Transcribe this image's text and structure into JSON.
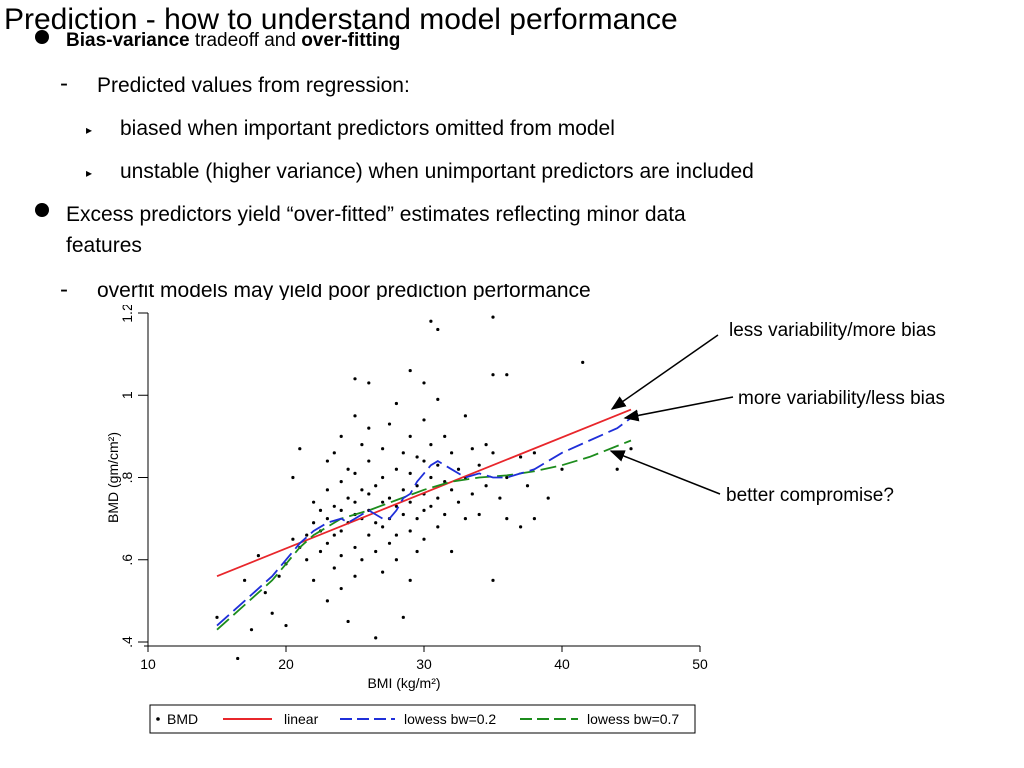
{
  "slide": {
    "title": "Prediction - how to understand model performance",
    "bullet1_bold1": "Bias-variance",
    "bullet1_mid": " tradeoff and ",
    "bullet1_bold2": "over-fitting",
    "sub1": "Predicted values from regression:",
    "subsub1": "biased when important predictors omitted from model",
    "subsub2": "unstable (higher variance) when unimportant predictors are included",
    "bullet2_line1": "Excess predictors yield “over-fitted” estimates reflecting minor data",
    "bullet2_line2": "features",
    "sub2": "overfit models may yield poor prediction performance",
    "triangle": "▸",
    "dash": "-"
  },
  "annotations": {
    "less_var": "less variability/more bias",
    "more_var": "more variability/less bias",
    "compromise": "better compromise?"
  },
  "chart_data": {
    "type": "scatter",
    "xlabel": "BMI (kg/m²)",
    "ylabel": "BMD (gm/cm²)",
    "xlim": [
      10,
      50
    ],
    "ylim": [
      0.4,
      1.2
    ],
    "xticks": [
      10,
      20,
      30,
      40,
      50
    ],
    "yticks": [
      0.4,
      0.6,
      0.8,
      1,
      1.2
    ],
    "xtick_labels": [
      "10",
      "20",
      "30",
      "40",
      "50"
    ],
    "ytick_labels": [
      ".4",
      ".6",
      ".8",
      "1",
      "1.2"
    ],
    "legend": [
      "BMD",
      "linear",
      "lowess bw=0.2",
      "lowess bw=0.7"
    ],
    "colors": {
      "points": "#000000",
      "linear": "#e8262b",
      "lowess02": "#1f2fd9",
      "lowess07": "#1c8c1c"
    },
    "series": [
      {
        "name": "linear",
        "x": [
          15,
          45
        ],
        "y": [
          0.56,
          0.965
        ]
      },
      {
        "name": "lowess bw=0.2",
        "x": [
          15,
          17,
          19,
          20,
          21,
          22,
          23,
          24,
          24.5,
          25,
          25.5,
          26,
          27,
          27.5,
          28,
          28.5,
          29,
          29.5,
          30,
          30.5,
          31,
          31.5,
          32,
          33,
          34,
          35,
          36,
          37,
          38,
          40,
          42,
          44,
          45
        ],
        "y": [
          0.44,
          0.5,
          0.56,
          0.6,
          0.64,
          0.67,
          0.69,
          0.7,
          0.69,
          0.7,
          0.71,
          0.72,
          0.7,
          0.7,
          0.72,
          0.75,
          0.76,
          0.79,
          0.81,
          0.83,
          0.84,
          0.83,
          0.82,
          0.8,
          0.81,
          0.8,
          0.8,
          0.81,
          0.82,
          0.86,
          0.89,
          0.92,
          0.945
        ]
      },
      {
        "name": "lowess bw=0.7",
        "x": [
          15,
          17,
          19,
          20,
          21,
          22,
          24,
          26,
          28,
          30,
          32,
          34,
          36,
          38,
          40,
          42,
          45
        ],
        "y": [
          0.43,
          0.49,
          0.55,
          0.59,
          0.63,
          0.66,
          0.7,
          0.72,
          0.745,
          0.77,
          0.79,
          0.8,
          0.805,
          0.815,
          0.83,
          0.85,
          0.89
        ]
      },
      {
        "name": "BMD",
        "points": [
          [
            15,
            0.46
          ],
          [
            16.5,
            0.36
          ],
          [
            17,
            0.55
          ],
          [
            17.5,
            0.43
          ],
          [
            18,
            0.61
          ],
          [
            18.5,
            0.52
          ],
          [
            19,
            0.47
          ],
          [
            19.5,
            0.56
          ],
          [
            20,
            0.44
          ],
          [
            20,
            0.59
          ],
          [
            20.5,
            0.65
          ],
          [
            20.5,
            0.8
          ],
          [
            21,
            0.87
          ],
          [
            21,
            0.63
          ],
          [
            21.5,
            0.6
          ],
          [
            21.5,
            0.66
          ],
          [
            22,
            0.74
          ],
          [
            22,
            0.69
          ],
          [
            22,
            0.55
          ],
          [
            22.5,
            0.67
          ],
          [
            22.5,
            0.72
          ],
          [
            22.5,
            0.62
          ],
          [
            23,
            0.84
          ],
          [
            23,
            0.77
          ],
          [
            23,
            0.7
          ],
          [
            23,
            0.64
          ],
          [
            23,
            0.5
          ],
          [
            23.5,
            0.86
          ],
          [
            23.5,
            0.73
          ],
          [
            23.5,
            0.66
          ],
          [
            23.5,
            0.58
          ],
          [
            24,
            0.9
          ],
          [
            24,
            0.79
          ],
          [
            24,
            0.72
          ],
          [
            24,
            0.67
          ],
          [
            24,
            0.61
          ],
          [
            24,
            0.53
          ],
          [
            24.5,
            0.82
          ],
          [
            24.5,
            0.75
          ],
          [
            24.5,
            0.69
          ],
          [
            24.5,
            0.45
          ],
          [
            25,
            1.04
          ],
          [
            25,
            0.95
          ],
          [
            25,
            0.81
          ],
          [
            25,
            0.74
          ],
          [
            25,
            0.71
          ],
          [
            25,
            0.63
          ],
          [
            25,
            0.56
          ],
          [
            25.5,
            0.88
          ],
          [
            25.5,
            0.77
          ],
          [
            25.5,
            0.7
          ],
          [
            25.5,
            0.6
          ],
          [
            26,
            0.92
          ],
          [
            26,
            0.84
          ],
          [
            26,
            0.76
          ],
          [
            26,
            0.72
          ],
          [
            26,
            0.66
          ],
          [
            26,
            1.03
          ],
          [
            26.5,
            0.78
          ],
          [
            26.5,
            0.69
          ],
          [
            26.5,
            0.41
          ],
          [
            26.5,
            0.62
          ],
          [
            27,
            0.87
          ],
          [
            27,
            0.8
          ],
          [
            27,
            0.74
          ],
          [
            27,
            0.68
          ],
          [
            27,
            0.57
          ],
          [
            27.5,
            0.93
          ],
          [
            27.5,
            0.75
          ],
          [
            27.5,
            0.7
          ],
          [
            27.5,
            0.64
          ],
          [
            28,
            0.98
          ],
          [
            28,
            0.82
          ],
          [
            28,
            0.73
          ],
          [
            28,
            0.66
          ],
          [
            28,
            0.6
          ],
          [
            28.5,
            0.86
          ],
          [
            28.5,
            0.77
          ],
          [
            28.5,
            0.71
          ],
          [
            28.5,
            0.46
          ],
          [
            29,
            1.06
          ],
          [
            29,
            0.9
          ],
          [
            29,
            0.81
          ],
          [
            29,
            0.74
          ],
          [
            29,
            0.67
          ],
          [
            29,
            0.55
          ],
          [
            29.5,
            0.85
          ],
          [
            29.5,
            0.78
          ],
          [
            29.5,
            0.7
          ],
          [
            29.5,
            0.62
          ],
          [
            30,
            1.03
          ],
          [
            30,
            0.94
          ],
          [
            30,
            0.84
          ],
          [
            30,
            0.76
          ],
          [
            30,
            0.72
          ],
          [
            30,
            0.65
          ],
          [
            30.5,
            1.18
          ],
          [
            30.5,
            0.88
          ],
          [
            30.5,
            0.8
          ],
          [
            30.5,
            0.73
          ],
          [
            31,
            1.16
          ],
          [
            31,
            0.99
          ],
          [
            31,
            0.83
          ],
          [
            31,
            0.75
          ],
          [
            31,
            0.68
          ],
          [
            31.5,
            0.9
          ],
          [
            31.5,
            0.79
          ],
          [
            31.5,
            0.71
          ],
          [
            32,
            0.86
          ],
          [
            32,
            0.77
          ],
          [
            32,
            0.62
          ],
          [
            32.5,
            0.82
          ],
          [
            32.5,
            0.74
          ],
          [
            33,
            0.95
          ],
          [
            33,
            0.8
          ],
          [
            33,
            0.7
          ],
          [
            33.5,
            0.87
          ],
          [
            33.5,
            0.76
          ],
          [
            34,
            0.83
          ],
          [
            34,
            0.71
          ],
          [
            34.5,
            0.88
          ],
          [
            34.5,
            0.78
          ],
          [
            35,
            1.19
          ],
          [
            35,
            1.05
          ],
          [
            35,
            0.86
          ],
          [
            35,
            0.55
          ],
          [
            35.5,
            0.75
          ],
          [
            36,
            1.05
          ],
          [
            36,
            0.8
          ],
          [
            36,
            0.7
          ],
          [
            37,
            0.85
          ],
          [
            37,
            0.68
          ],
          [
            37.5,
            0.78
          ],
          [
            38,
            0.86
          ],
          [
            38,
            0.7
          ],
          [
            39,
            0.75
          ],
          [
            40,
            0.82
          ],
          [
            41.5,
            1.08
          ],
          [
            44,
            0.82
          ],
          [
            45,
            0.87
          ]
        ]
      }
    ]
  }
}
